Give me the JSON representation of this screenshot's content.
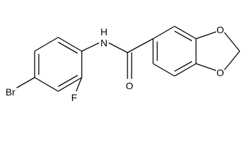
{
  "atoms": {
    "bromine": "Br",
    "fluorine": "F",
    "nitrogen": "N",
    "hydrogen": "H",
    "carbonyl_oxygen": "O",
    "ring_oxygen_top": "O",
    "ring_oxygen_bottom": "O"
  }
}
